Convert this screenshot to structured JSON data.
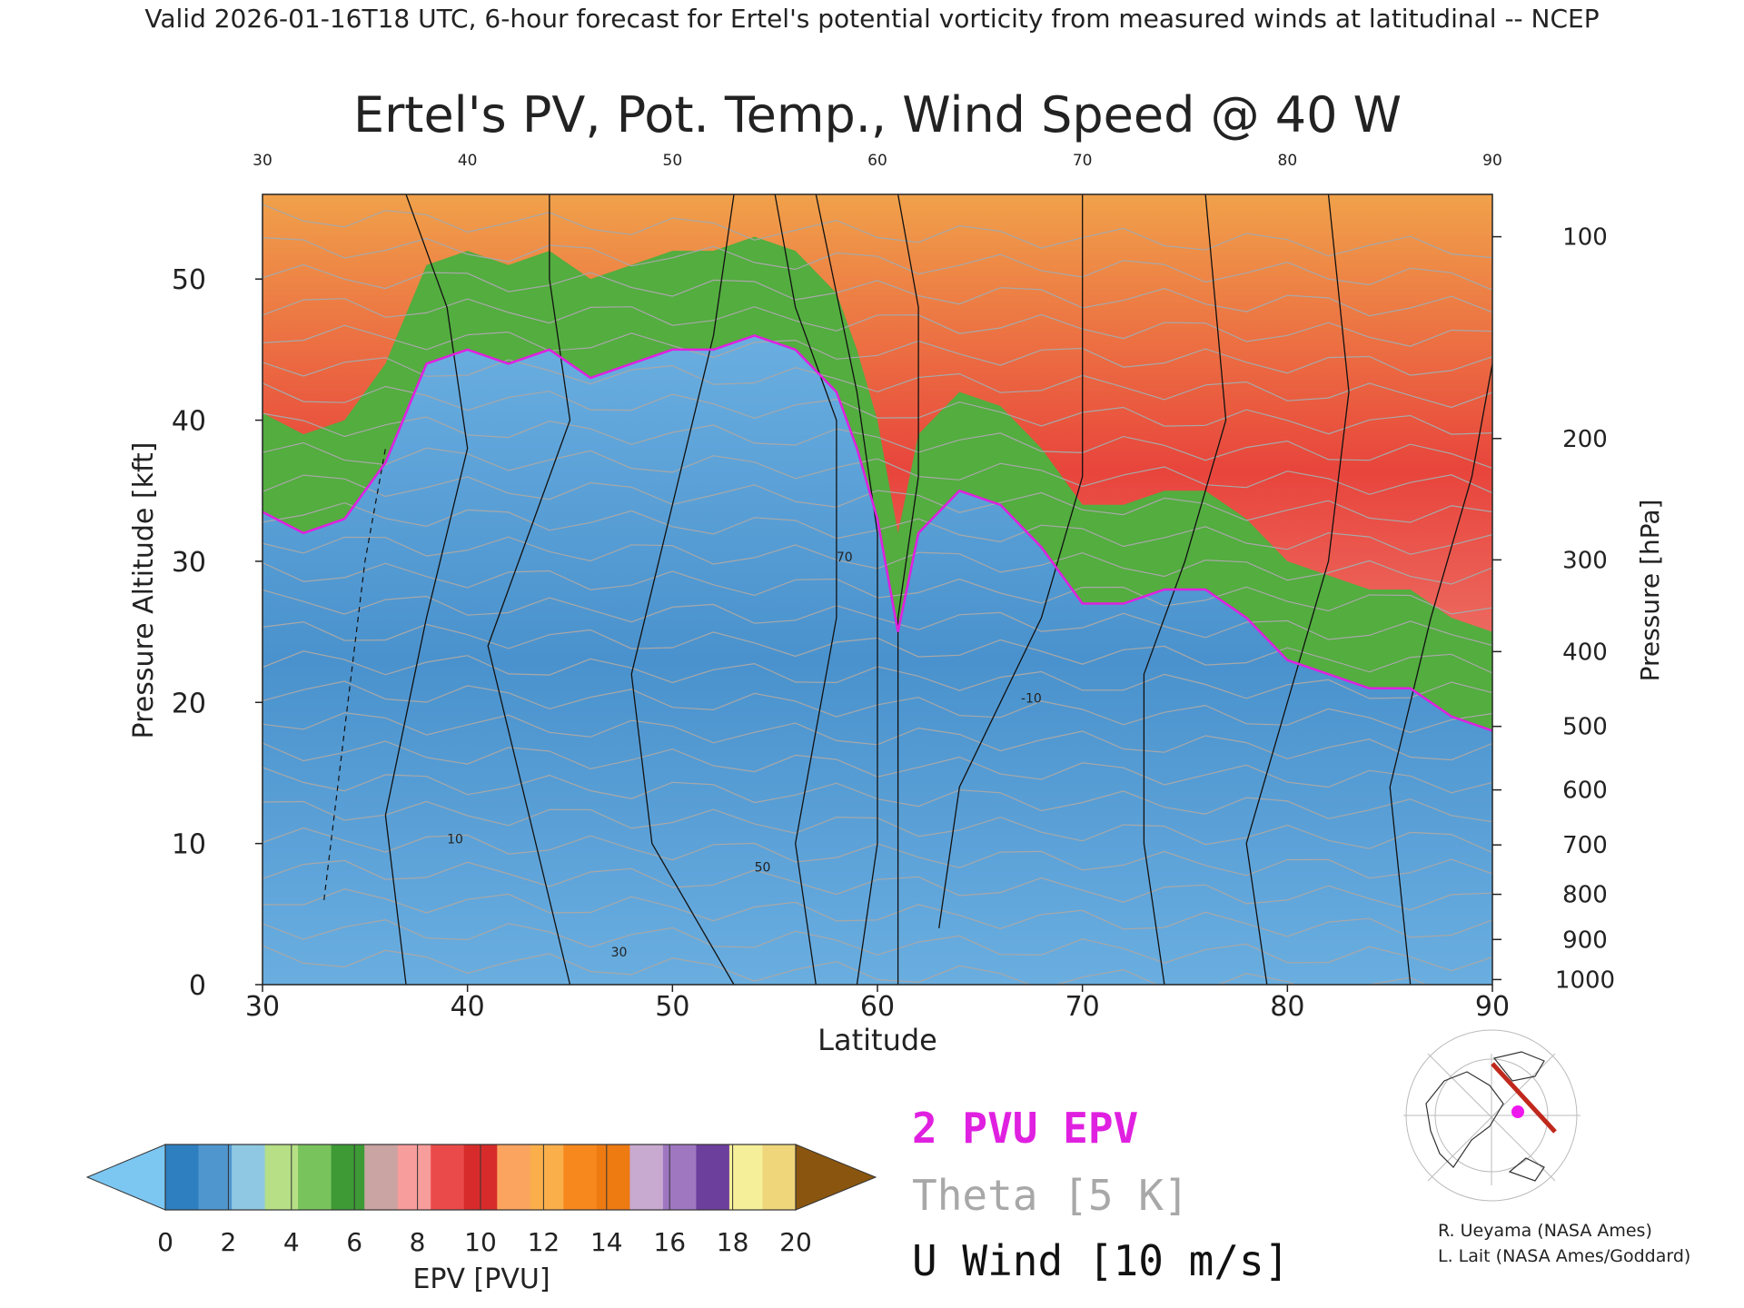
{
  "header": {
    "validity": "Valid 2026-01-16T18 UTC, 6-hour forecast for Ertel's potential vorticity from measured winds at latitudinal -- NCEP"
  },
  "chart_data": {
    "type": "heatmap",
    "title": "Ertel's PV, Pot. Temp., Wind Speed @ 40 W",
    "xlabel": "Latitude",
    "ylabel": "Pressure Altitude [kft]",
    "y2label": "Pressure [hPa]",
    "xlim": [
      30,
      90
    ],
    "ylim": [
      0,
      56
    ],
    "x_ticks": [
      30,
      40,
      50,
      60,
      70,
      80,
      90
    ],
    "y_ticks": [
      0,
      10,
      20,
      30,
      40,
      50
    ],
    "pressure_ticks": [
      {
        "hPa": 100,
        "kft": 53.0
      },
      {
        "hPa": 200,
        "kft": 38.7
      },
      {
        "hPa": 300,
        "kft": 30.1
      },
      {
        "hPa": 400,
        "kft": 23.6
      },
      {
        "hPa": 500,
        "kft": 18.3
      },
      {
        "hPa": 600,
        "kft": 13.8
      },
      {
        "hPa": 700,
        "kft": 9.9
      },
      {
        "hPa": 800,
        "kft": 6.4
      },
      {
        "hPa": 900,
        "kft": 3.2
      },
      {
        "hPa": 1000,
        "kft": 0.36
      }
    ],
    "tropopause_2pvu_kft": [
      [
        30,
        33.5
      ],
      [
        32,
        32
      ],
      [
        34,
        33
      ],
      [
        36,
        37
      ],
      [
        38,
        44
      ],
      [
        40,
        45
      ],
      [
        42,
        44
      ],
      [
        44,
        45
      ],
      [
        46,
        43
      ],
      [
        48,
        44
      ],
      [
        50,
        45
      ],
      [
        52,
        45
      ],
      [
        54,
        46
      ],
      [
        56,
        45
      ],
      [
        58,
        42
      ],
      [
        59,
        38
      ],
      [
        60,
        33
      ],
      [
        61,
        25
      ],
      [
        62,
        32
      ],
      [
        64,
        35
      ],
      [
        66,
        34
      ],
      [
        68,
        31
      ],
      [
        70,
        27
      ],
      [
        72,
        27
      ],
      [
        74,
        28
      ],
      [
        76,
        28
      ],
      [
        78,
        26
      ],
      [
        80,
        23
      ],
      [
        82,
        22
      ],
      [
        84,
        21
      ],
      [
        86,
        21
      ],
      [
        88,
        19
      ],
      [
        90,
        18
      ]
    ],
    "epv_colorbar": {
      "label": "EPV [PVU]",
      "ticks": [
        0,
        2,
        4,
        6,
        8,
        10,
        12,
        14,
        16,
        18,
        20
      ],
      "colors": [
        "#2e7fc0",
        "#4f96cf",
        "#8fc8e3",
        "#b6df86",
        "#79c35d",
        "#3d9a35",
        "#c9a4a2",
        "#f79d9b",
        "#eb4a4a",
        "#d72b2b",
        "#fba45f",
        "#faaf4b",
        "#f7881d",
        "#ee7a12",
        "#c8aad0",
        "#9e77c0",
        "#6d3f9d",
        "#f5ef9a",
        "#f0d67a"
      ],
      "under_color": "#7cc6f2",
      "over_color": "#8a560f"
    },
    "legend": {
      "epv_contour": "2 PVU EPV",
      "theta": "Theta [5 K]",
      "wind": "U Wind [10 m/s]"
    },
    "wind_contour_labels": [
      "10",
      "30",
      "50",
      "70",
      "-10"
    ]
  },
  "colors": {
    "tropopause": "#e020e0",
    "theta": "#a8a8a8",
    "wind": "#111111",
    "stratosphere": "#e7352f",
    "troposphere": "#4a93cd"
  },
  "credits": {
    "line1": "R. Ueyama (NASA Ames)",
    "line2": "L. Lait (NASA Ames/Goddard)"
  }
}
